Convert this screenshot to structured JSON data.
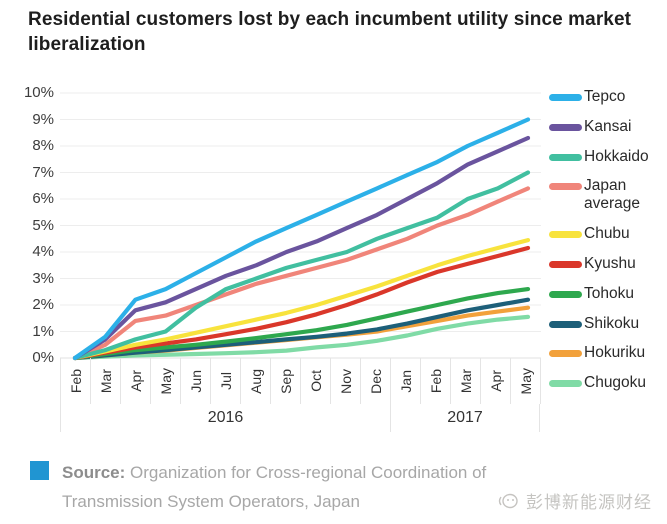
{
  "title": "Residential customers lost by each incumbent utility since market liberalization",
  "chart_data": {
    "type": "line",
    "title": "Residential customers lost by each incumbent utility since market liberalization",
    "xlabel": "",
    "ylabel": "",
    "ylim": [
      0,
      10
    ],
    "grid": true,
    "legend_position": "right",
    "yticks": [
      "0%",
      "1%",
      "2%",
      "3%",
      "4%",
      "5%",
      "6%",
      "7%",
      "8%",
      "9%",
      "10%"
    ],
    "x": [
      "Feb",
      "Mar",
      "Apr",
      "May",
      "Jun",
      "Jul",
      "Aug",
      "Sep",
      "Oct",
      "Nov",
      "Dec",
      "Jan",
      "Feb",
      "Mar",
      "Apr",
      "May"
    ],
    "year_groups": [
      {
        "label": "2016",
        "span": 11
      },
      {
        "label": "2017",
        "span": 5
      }
    ],
    "series": [
      {
        "name": "Tepco",
        "color": "#2cb0e8",
        "values": [
          0,
          0.8,
          2.2,
          2.6,
          3.2,
          3.8,
          4.4,
          4.9,
          5.4,
          5.9,
          6.4,
          6.9,
          7.4,
          8.0,
          8.5,
          9.0
        ]
      },
      {
        "name": "Kansai",
        "color": "#6a549e",
        "values": [
          0,
          0.7,
          1.8,
          2.1,
          2.6,
          3.1,
          3.5,
          4.0,
          4.4,
          4.9,
          5.4,
          6.0,
          6.6,
          7.3,
          7.8,
          8.3
        ]
      },
      {
        "name": "Hokkaido",
        "color": "#41bfa0",
        "values": [
          0,
          0.3,
          0.7,
          1.0,
          1.9,
          2.6,
          3.0,
          3.4,
          3.7,
          4.0,
          4.5,
          4.9,
          5.3,
          6.0,
          6.4,
          7.0
        ]
      },
      {
        "name": "Japan average",
        "color": "#f0857a",
        "values": [
          0,
          0.5,
          1.4,
          1.6,
          2.0,
          2.4,
          2.8,
          3.1,
          3.4,
          3.7,
          4.1,
          4.5,
          5.0,
          5.4,
          5.9,
          6.4
        ]
      },
      {
        "name": "Chubu",
        "color": "#f8e33d",
        "values": [
          0,
          0.25,
          0.5,
          0.7,
          0.95,
          1.2,
          1.45,
          1.7,
          2.0,
          2.35,
          2.7,
          3.1,
          3.5,
          3.85,
          4.15,
          4.45
        ]
      },
      {
        "name": "Kyushu",
        "color": "#da372a",
        "values": [
          0,
          0.2,
          0.4,
          0.55,
          0.7,
          0.9,
          1.1,
          1.35,
          1.65,
          2.0,
          2.4,
          2.85,
          3.25,
          3.55,
          3.85,
          4.15
        ]
      },
      {
        "name": "Tohoku",
        "color": "#2ea84e",
        "values": [
          0,
          0.15,
          0.3,
          0.4,
          0.5,
          0.62,
          0.75,
          0.9,
          1.05,
          1.25,
          1.5,
          1.75,
          2.0,
          2.25,
          2.45,
          2.6
        ]
      },
      {
        "name": "Shikoku",
        "color": "#1d5f79",
        "values": [
          0,
          0.1,
          0.2,
          0.3,
          0.4,
          0.5,
          0.6,
          0.7,
          0.8,
          0.92,
          1.08,
          1.3,
          1.55,
          1.8,
          2.0,
          2.2
        ]
      },
      {
        "name": "Hokuriku",
        "color": "#f2a13b",
        "values": [
          0,
          0.1,
          0.2,
          0.28,
          0.38,
          0.48,
          0.58,
          0.68,
          0.78,
          0.88,
          1.0,
          1.2,
          1.4,
          1.6,
          1.75,
          1.9
        ]
      },
      {
        "name": "Chugoku",
        "color": "#80dba6",
        "values": [
          0,
          0.05,
          0.1,
          0.12,
          0.15,
          0.18,
          0.22,
          0.28,
          0.4,
          0.5,
          0.65,
          0.85,
          1.1,
          1.3,
          1.45,
          1.55
        ]
      }
    ]
  },
  "footer": {
    "accent_color": "#2095d2",
    "source_label": "Source:",
    "source_text": " Organization for Cross-regional Coordination of Transmission System Operators, Japan"
  },
  "watermark": {
    "text": "彭博新能源财经"
  }
}
